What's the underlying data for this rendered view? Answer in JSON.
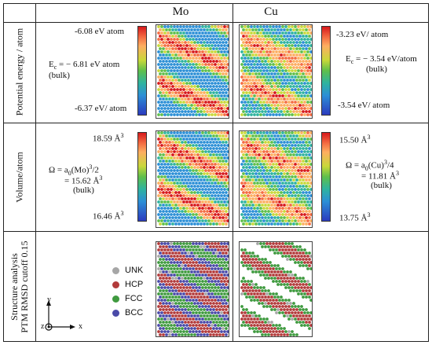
{
  "columns": [
    "Mo",
    "Cu"
  ],
  "rows": [
    {
      "label": "Potential energy / atom"
    },
    {
      "label": "Volume/atom"
    },
    {
      "label_lines": [
        "Structure analysis",
        "PTM RMSD cutoff 0.15"
      ]
    }
  ],
  "energy": {
    "mo": {
      "max": "-6.08 eV atom",
      "min": "-6.37 eV/ atom",
      "ec_prefix": "E",
      "ec_sub": "c",
      "ec_rest": " = − 6.81 eV atom",
      "bulk": "(bulk)"
    },
    "cu": {
      "max": "-3.23 eV/ atom",
      "min": "-3.54 eV/ atom",
      "ec_prefix": "E",
      "ec_sub": "c",
      "ec_rest": " = − 3.54 eV/atom",
      "bulk": "(bulk)"
    }
  },
  "volume": {
    "mo": {
      "max": "18.59 Å",
      "max_sup": "3",
      "min": "16.46  Å",
      "min_sup": "3",
      "omega_a": "Ω = a",
      "omega_sub": "0",
      "omega_b": "(Mo)",
      "omega_sup": "3",
      "omega_c": "/2",
      "value": "= 15.62 Å",
      "value_sup": "3",
      "bulk": "(bulk)"
    },
    "cu": {
      "max": "15.50 Å",
      "max_sup": "3",
      "min": "13.75 Å",
      "min_sup": "3",
      "omega_a": "Ω = a",
      "omega_sub": "0",
      "omega_b": "(Cu)",
      "omega_sup": "3",
      "omega_c": "/4",
      "value": "= 11.81 Å",
      "value_sup": "3",
      "bulk": "(bulk)"
    }
  },
  "structure_legend": [
    {
      "label": "UNK",
      "color": "#a6a6a6"
    },
    {
      "label": "HCP",
      "color": "#b23b3b"
    },
    {
      "label": "FCC",
      "color": "#3f9a3f"
    },
    {
      "label": "BCC",
      "color": "#4a4aa8"
    }
  ],
  "axes": {
    "y": "y",
    "x": "x",
    "z": "z"
  },
  "colors": {
    "jet_top": "#d7191c",
    "jet_bottom": "#2b3bbf",
    "white_atom": "#ffffff"
  }
}
